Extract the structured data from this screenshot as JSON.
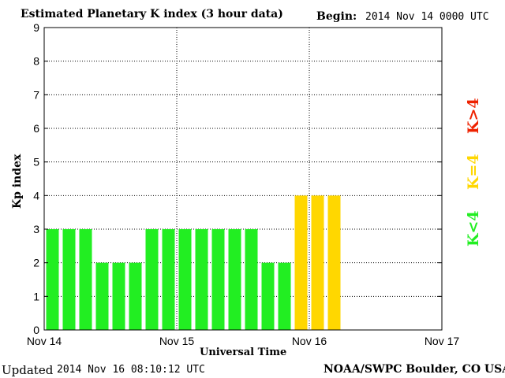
{
  "header": {
    "title": "Estimated Planetary K index (3 hour data)",
    "begin_label": "Begin:",
    "begin_value": "2014 Nov 14 0000 UTC"
  },
  "footer": {
    "updated_label": "Updated",
    "updated_value": "2014 Nov 16 08:10:12 UTC",
    "credit": "NOAA/SWPC Boulder, CO USA"
  },
  "legend": {
    "low": {
      "label": "K<4",
      "color": "#22ee22"
    },
    "mid": {
      "label": "K=4",
      "color": "#ffd700"
    },
    "high": {
      "label": "K>4",
      "color": "#ee2200"
    }
  },
  "chart_data": {
    "type": "bar",
    "title": "Estimated Planetary K index (3 hour data)",
    "xlabel": "Universal Time",
    "ylabel": "Kp index",
    "ylim": [
      0,
      9
    ],
    "y_ticks": [
      "0",
      "1",
      "2",
      "3",
      "4",
      "5",
      "6",
      "7",
      "8",
      "9"
    ],
    "x_ticks": [
      "Nov 14",
      "Nov 15",
      "Nov 16",
      "Nov 17"
    ],
    "periods_per_day": 8,
    "days": 3,
    "grid": true,
    "values": [
      3,
      3,
      3,
      2,
      2,
      2,
      3,
      3,
      3,
      3,
      3,
      3,
      3,
      2,
      2,
      4,
      4,
      4
    ],
    "colors": {
      "below_4": "#22ee22",
      "equal_4": "#ffd700",
      "above_4": "#ee2200"
    }
  }
}
